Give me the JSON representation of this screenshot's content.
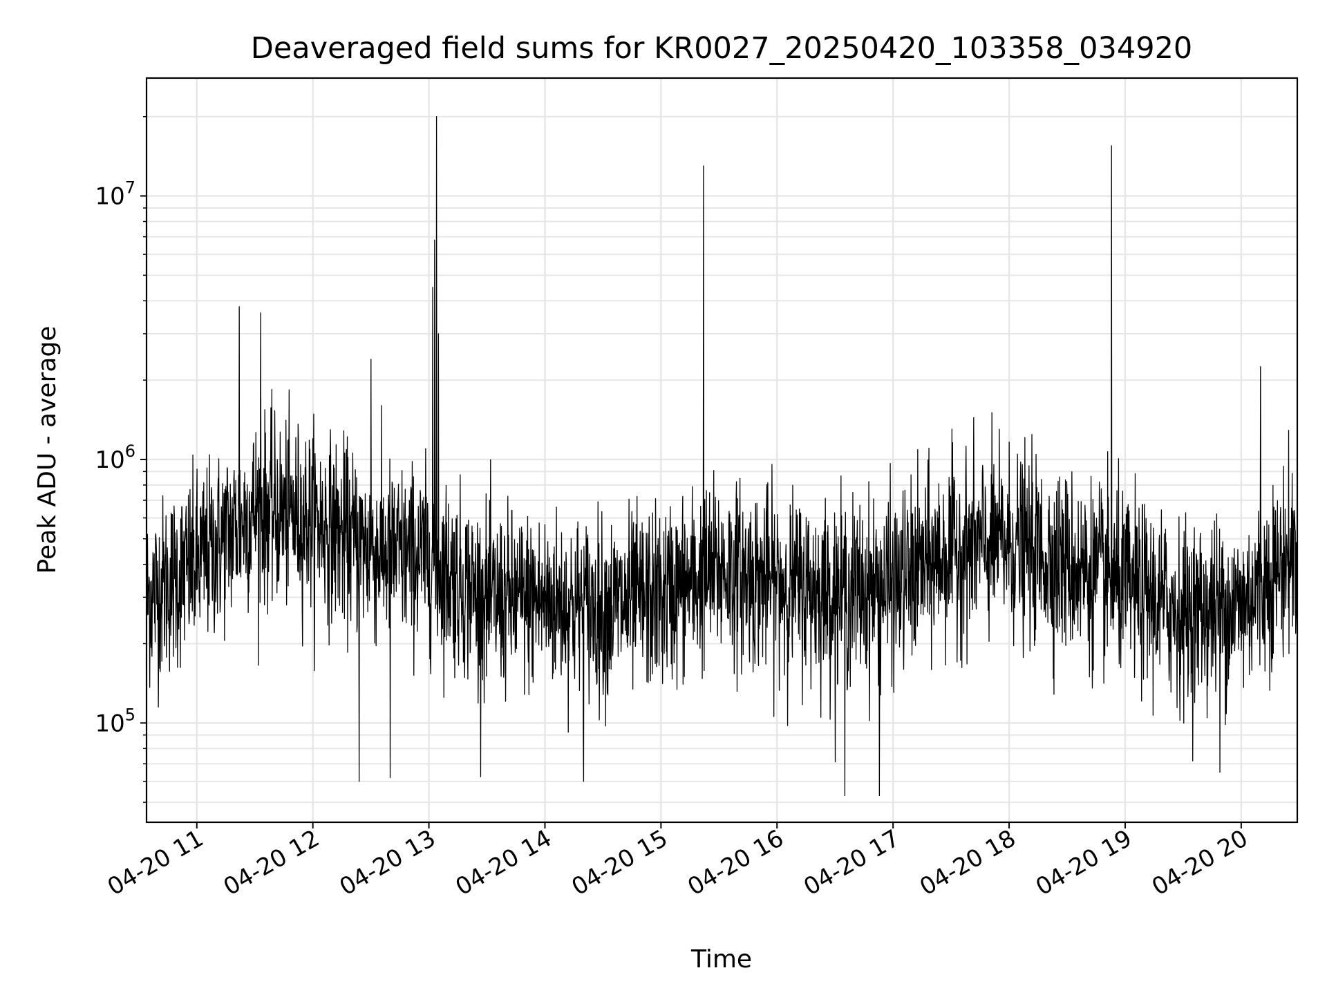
{
  "chart_data": {
    "type": "line",
    "title": "Deaveraged field sums for KR0027_20250420_103358_034920",
    "xlabel": "Time",
    "ylabel": "Peak ADU - average",
    "yscale": "log",
    "ylim": [
      42000,
      28000000
    ],
    "xlim": [
      "2025-04-20 10:34",
      "2025-04-20 20:29"
    ],
    "grid": true,
    "line_color": "#000000",
    "x_ticks": [
      {
        "value": "2025-04-20 11:00",
        "label": "04-20 11"
      },
      {
        "value": "2025-04-20 12:00",
        "label": "04-20 12"
      },
      {
        "value": "2025-04-20 13:00",
        "label": "04-20 13"
      },
      {
        "value": "2025-04-20 14:00",
        "label": "04-20 14"
      },
      {
        "value": "2025-04-20 15:00",
        "label": "04-20 15"
      },
      {
        "value": "2025-04-20 16:00",
        "label": "04-20 16"
      },
      {
        "value": "2025-04-20 17:00",
        "label": "04-20 17"
      },
      {
        "value": "2025-04-20 18:00",
        "label": "04-20 18"
      },
      {
        "value": "2025-04-20 19:00",
        "label": "04-20 19"
      },
      {
        "value": "2025-04-20 20:00",
        "label": "04-20 20"
      }
    ],
    "y_ticks": [
      {
        "value": 100000,
        "base": "10",
        "exp": "5"
      },
      {
        "value": 1000000,
        "base": "10",
        "exp": "6"
      },
      {
        "value": 10000000,
        "base": "10",
        "exp": "7"
      }
    ],
    "series": [
      {
        "values_per_hour": [
          {
            "x": "2025-04-20 10:34",
            "y": 300000
          },
          {
            "x": "2025-04-20 11:00",
            "y": 400000
          },
          {
            "x": "2025-04-20 11:30",
            "y": 650000
          },
          {
            "x": "2025-04-20 12:00",
            "y": 600000
          },
          {
            "x": "2025-04-20 12:30",
            "y": 450000
          },
          {
            "x": "2025-04-20 13:00",
            "y": 420000
          },
          {
            "x": "2025-04-20 13:30",
            "y": 290000
          },
          {
            "x": "2025-04-20 14:00",
            "y": 290000
          },
          {
            "x": "2025-04-20 14:30",
            "y": 270000
          },
          {
            "x": "2025-04-20 15:00",
            "y": 300000
          },
          {
            "x": "2025-04-20 15:30",
            "y": 380000
          },
          {
            "x": "2025-04-20 16:00",
            "y": 340000
          },
          {
            "x": "2025-04-20 16:30",
            "y": 310000
          },
          {
            "x": "2025-04-20 17:00",
            "y": 330000
          },
          {
            "x": "2025-04-20 17:30",
            "y": 450000
          },
          {
            "x": "2025-04-20 18:00",
            "y": 480000
          },
          {
            "x": "2025-04-20 18:30",
            "y": 400000
          },
          {
            "x": "2025-04-20 19:00",
            "y": 330000
          },
          {
            "x": "2025-04-20 19:30",
            "y": 260000
          },
          {
            "x": "2025-04-20 20:00",
            "y": 280000
          },
          {
            "x": "2025-04-20 20:29",
            "y": 460000
          }
        ],
        "spikes": [
          {
            "x": "2025-04-20 11:22",
            "y": 3800000
          },
          {
            "x": "2025-04-20 11:33",
            "y": 3600000
          },
          {
            "x": "2025-04-20 12:30",
            "y": 2400000
          },
          {
            "x": "2025-04-20 13:02",
            "y": 4500000
          },
          {
            "x": "2025-04-20 13:03",
            "y": 6800000
          },
          {
            "x": "2025-04-20 13:04",
            "y": 20000000
          },
          {
            "x": "2025-04-20 13:05",
            "y": 3000000
          },
          {
            "x": "2025-04-20 15:22",
            "y": 13000000
          },
          {
            "x": "2025-04-20 18:53",
            "y": 15500000
          },
          {
            "x": "2025-04-20 20:10",
            "y": 2250000
          }
        ],
        "dips": [
          {
            "x": "2025-04-20 12:24",
            "y": 60000
          },
          {
            "x": "2025-04-20 12:40",
            "y": 62000
          },
          {
            "x": "2025-04-20 14:20",
            "y": 60000
          },
          {
            "x": "2025-04-20 16:35",
            "y": 53000
          },
          {
            "x": "2025-04-20 16:53",
            "y": 53000
          },
          {
            "x": "2025-04-20 19:49",
            "y": 65000
          }
        ]
      }
    ]
  }
}
